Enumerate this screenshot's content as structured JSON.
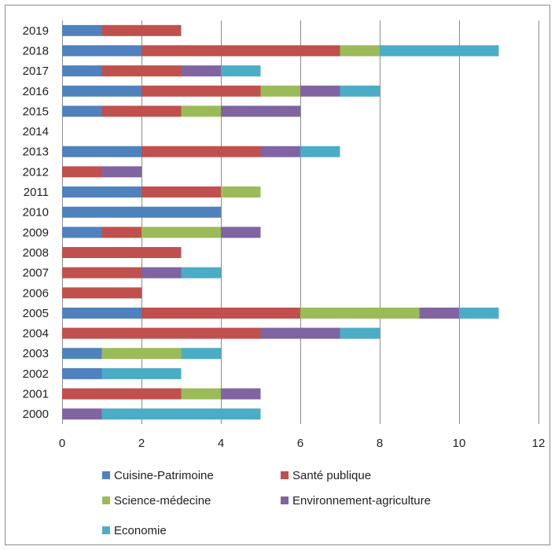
{
  "chart_data": {
    "type": "bar",
    "orientation": "horizontal",
    "stacked": true,
    "title": "",
    "xlabel": "",
    "ylabel": "",
    "xlim": [
      0,
      12
    ],
    "x_ticks": [
      0,
      2,
      4,
      6,
      8,
      10,
      12
    ],
    "grid": "vertical major gridlines",
    "legend_position": "bottom",
    "categories": [
      "2019",
      "2018",
      "2017",
      "2016",
      "2015",
      "2014",
      "2013",
      "2012",
      "2011",
      "2010",
      "2009",
      "2008",
      "2007",
      "2006",
      "2005",
      "2004",
      "2003",
      "2002",
      "2001",
      "2000"
    ],
    "series": [
      {
        "name": "Cuisine-Patrimoine",
        "color": "#4f81bd",
        "values": [
          1,
          2,
          1,
          2,
          1,
          0,
          2,
          0,
          2,
          4,
          1,
          0,
          0,
          0,
          2,
          0,
          1,
          1,
          0,
          0
        ]
      },
      {
        "name": "Santé publique",
        "color": "#c0504d",
        "values": [
          2,
          5,
          2,
          3,
          2,
          0,
          3,
          1,
          2,
          0,
          1,
          3,
          2,
          2,
          4,
          5,
          0,
          0,
          3,
          0
        ]
      },
      {
        "name": "Science-médecine",
        "color": "#9bbb59",
        "values": [
          0,
          1,
          0,
          1,
          1,
          0,
          0,
          0,
          1,
          0,
          2,
          0,
          0,
          0,
          3,
          0,
          2,
          0,
          1,
          0
        ]
      },
      {
        "name": "Environnement-agriculture",
        "color": "#8064a2",
        "values": [
          0,
          0,
          1,
          1,
          2,
          0,
          1,
          1,
          0,
          0,
          1,
          0,
          1,
          0,
          1,
          2,
          0,
          0,
          1,
          1
        ]
      },
      {
        "name": "Economie",
        "color": "#4bacc6",
        "values": [
          0,
          3,
          1,
          1,
          0,
          0,
          1,
          0,
          0,
          0,
          0,
          0,
          1,
          0,
          1,
          1,
          1,
          2,
          0,
          4
        ]
      }
    ]
  }
}
